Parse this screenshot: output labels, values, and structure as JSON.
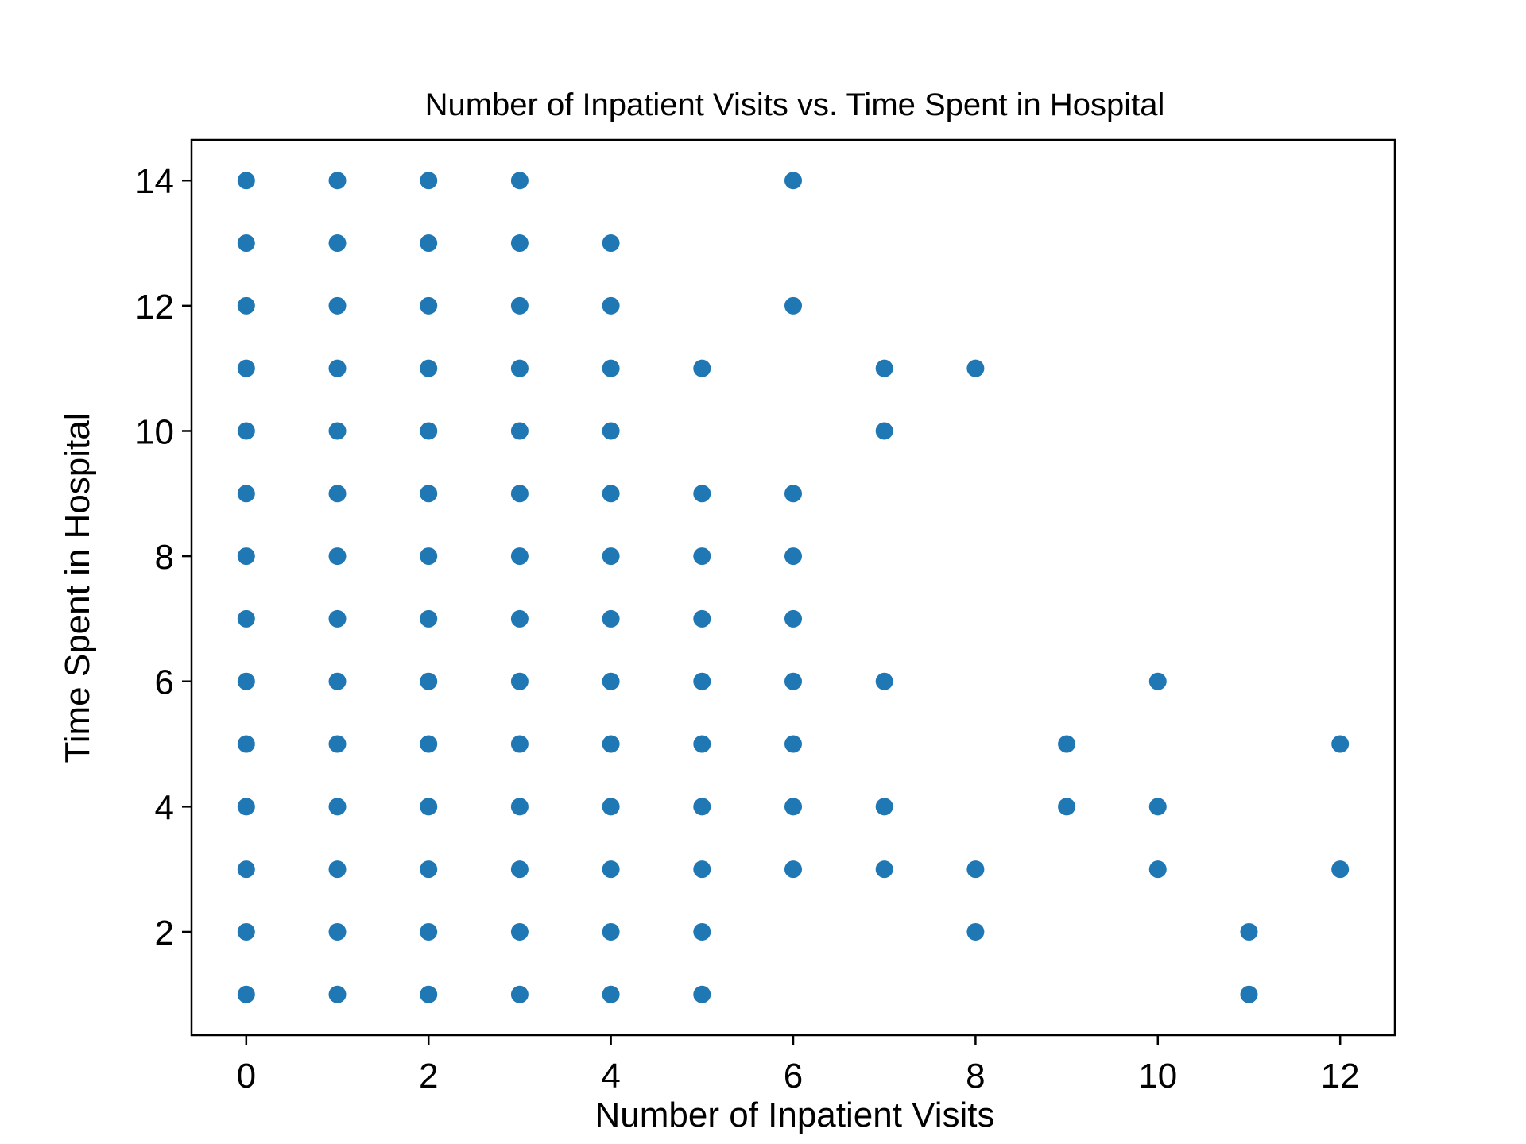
{
  "chart_data": {
    "type": "scatter",
    "title": "Number of Inpatient Visits vs. Time Spent in Hospital",
    "xlabel": "Number of Inpatient Visits",
    "ylabel": "Time Spent in Hospital",
    "xlim": [
      -0.6,
      12.6
    ],
    "ylim": [
      0.35,
      14.65
    ],
    "xticks": [
      0,
      2,
      4,
      6,
      8,
      10,
      12
    ],
    "yticks": [
      2,
      4,
      6,
      8,
      10,
      12,
      14
    ],
    "grid": false,
    "marker_color": "#1f77b4",
    "points": [
      {
        "x": 0,
        "y": 1
      },
      {
        "x": 0,
        "y": 2
      },
      {
        "x": 0,
        "y": 3
      },
      {
        "x": 0,
        "y": 4
      },
      {
        "x": 0,
        "y": 5
      },
      {
        "x": 0,
        "y": 6
      },
      {
        "x": 0,
        "y": 7
      },
      {
        "x": 0,
        "y": 8
      },
      {
        "x": 0,
        "y": 9
      },
      {
        "x": 0,
        "y": 10
      },
      {
        "x": 0,
        "y": 11
      },
      {
        "x": 0,
        "y": 12
      },
      {
        "x": 0,
        "y": 13
      },
      {
        "x": 0,
        "y": 14
      },
      {
        "x": 1,
        "y": 1
      },
      {
        "x": 1,
        "y": 2
      },
      {
        "x": 1,
        "y": 3
      },
      {
        "x": 1,
        "y": 4
      },
      {
        "x": 1,
        "y": 5
      },
      {
        "x": 1,
        "y": 6
      },
      {
        "x": 1,
        "y": 7
      },
      {
        "x": 1,
        "y": 8
      },
      {
        "x": 1,
        "y": 9
      },
      {
        "x": 1,
        "y": 10
      },
      {
        "x": 1,
        "y": 11
      },
      {
        "x": 1,
        "y": 12
      },
      {
        "x": 1,
        "y": 13
      },
      {
        "x": 1,
        "y": 14
      },
      {
        "x": 2,
        "y": 1
      },
      {
        "x": 2,
        "y": 2
      },
      {
        "x": 2,
        "y": 3
      },
      {
        "x": 2,
        "y": 4
      },
      {
        "x": 2,
        "y": 5
      },
      {
        "x": 2,
        "y": 6
      },
      {
        "x": 2,
        "y": 7
      },
      {
        "x": 2,
        "y": 8
      },
      {
        "x": 2,
        "y": 9
      },
      {
        "x": 2,
        "y": 10
      },
      {
        "x": 2,
        "y": 11
      },
      {
        "x": 2,
        "y": 12
      },
      {
        "x": 2,
        "y": 13
      },
      {
        "x": 2,
        "y": 14
      },
      {
        "x": 3,
        "y": 1
      },
      {
        "x": 3,
        "y": 2
      },
      {
        "x": 3,
        "y": 3
      },
      {
        "x": 3,
        "y": 4
      },
      {
        "x": 3,
        "y": 5
      },
      {
        "x": 3,
        "y": 6
      },
      {
        "x": 3,
        "y": 7
      },
      {
        "x": 3,
        "y": 8
      },
      {
        "x": 3,
        "y": 9
      },
      {
        "x": 3,
        "y": 10
      },
      {
        "x": 3,
        "y": 11
      },
      {
        "x": 3,
        "y": 12
      },
      {
        "x": 3,
        "y": 13
      },
      {
        "x": 3,
        "y": 14
      },
      {
        "x": 4,
        "y": 1
      },
      {
        "x": 4,
        "y": 2
      },
      {
        "x": 4,
        "y": 3
      },
      {
        "x": 4,
        "y": 4
      },
      {
        "x": 4,
        "y": 5
      },
      {
        "x": 4,
        "y": 6
      },
      {
        "x": 4,
        "y": 7
      },
      {
        "x": 4,
        "y": 8
      },
      {
        "x": 4,
        "y": 9
      },
      {
        "x": 4,
        "y": 10
      },
      {
        "x": 4,
        "y": 11
      },
      {
        "x": 4,
        "y": 12
      },
      {
        "x": 4,
        "y": 13
      },
      {
        "x": 5,
        "y": 1
      },
      {
        "x": 5,
        "y": 2
      },
      {
        "x": 5,
        "y": 3
      },
      {
        "x": 5,
        "y": 4
      },
      {
        "x": 5,
        "y": 5
      },
      {
        "x": 5,
        "y": 6
      },
      {
        "x": 5,
        "y": 7
      },
      {
        "x": 5,
        "y": 8
      },
      {
        "x": 5,
        "y": 9
      },
      {
        "x": 5,
        "y": 11
      },
      {
        "x": 6,
        "y": 3
      },
      {
        "x": 6,
        "y": 4
      },
      {
        "x": 6,
        "y": 5
      },
      {
        "x": 6,
        "y": 6
      },
      {
        "x": 6,
        "y": 7
      },
      {
        "x": 6,
        "y": 8
      },
      {
        "x": 6,
        "y": 9
      },
      {
        "x": 6,
        "y": 12
      },
      {
        "x": 6,
        "y": 14
      },
      {
        "x": 7,
        "y": 3
      },
      {
        "x": 7,
        "y": 4
      },
      {
        "x": 7,
        "y": 6
      },
      {
        "x": 7,
        "y": 10
      },
      {
        "x": 7,
        "y": 11
      },
      {
        "x": 8,
        "y": 2
      },
      {
        "x": 8,
        "y": 3
      },
      {
        "x": 8,
        "y": 11
      },
      {
        "x": 9,
        "y": 4
      },
      {
        "x": 9,
        "y": 5
      },
      {
        "x": 10,
        "y": 3
      },
      {
        "x": 10,
        "y": 4
      },
      {
        "x": 10,
        "y": 6
      },
      {
        "x": 11,
        "y": 1
      },
      {
        "x": 11,
        "y": 2
      },
      {
        "x": 12,
        "y": 3
      },
      {
        "x": 12,
        "y": 5
      }
    ]
  }
}
